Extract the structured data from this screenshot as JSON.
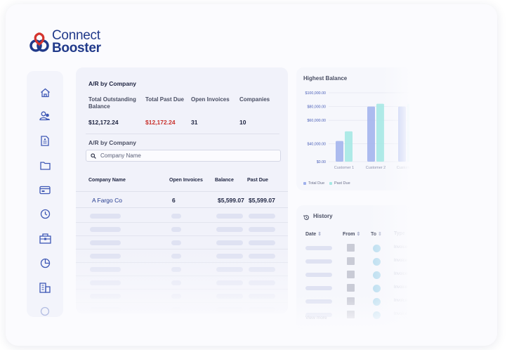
{
  "brand": {
    "name_line1": "Connect",
    "name_line2": "Booster",
    "accent_blue": "#213a8a",
    "accent_red": "#c8302b"
  },
  "sidebar": {
    "icons": [
      "home-icon",
      "users-icon",
      "document-icon",
      "folder-icon",
      "payment-card-icon",
      "clock-icon",
      "building-icon",
      "pie-chart-icon",
      "office-icon",
      "more-icon"
    ]
  },
  "ar_panel": {
    "title": "A/R by Company",
    "stats": [
      {
        "label": "Total Outstanding Balance",
        "value": "$12,172.24"
      },
      {
        "label": "Total Past Due",
        "value": "$12,172.24"
      },
      {
        "label": "Open Invoices",
        "value": "31"
      },
      {
        "label": "Companies",
        "value": "10"
      }
    ],
    "subtitle": "A/R by Company",
    "search": {
      "placeholder": "Company Name",
      "value": ""
    },
    "columns": [
      "Company Name",
      "Open Invoices",
      "Balance",
      "Past Due"
    ],
    "rows": [
      {
        "company": "A Fargo Co",
        "open_invoices": "6",
        "balance": "$5,599.07",
        "past_due": "$5,599.07"
      }
    ]
  },
  "highest_balance": {
    "title": "Highest Balance"
  },
  "chart_data": {
    "type": "bar",
    "title": "Highest Balance",
    "categories": [
      "Customer 1",
      "Customer 2",
      "Customer 3"
    ],
    "series": [
      {
        "name": "Total Due",
        "values": [
          30000,
          80000,
          80000
        ],
        "color": "#9fb0ec"
      },
      {
        "name": "Past Due",
        "values": [
          44000,
          84000,
          84000
        ],
        "color": "#a6e8e4"
      }
    ],
    "yticks": [
      "$100,000.00",
      "$80,000.00",
      "$60,000.00",
      "$40,000.00",
      "$0.00"
    ],
    "ylim": [
      0,
      100000
    ],
    "grid": true,
    "legend": "bottom-left"
  },
  "history": {
    "title": "History",
    "columns": [
      "Date",
      "From",
      "To",
      "Type"
    ],
    "row_type_label": "Invoice",
    "view_more": "View more"
  }
}
